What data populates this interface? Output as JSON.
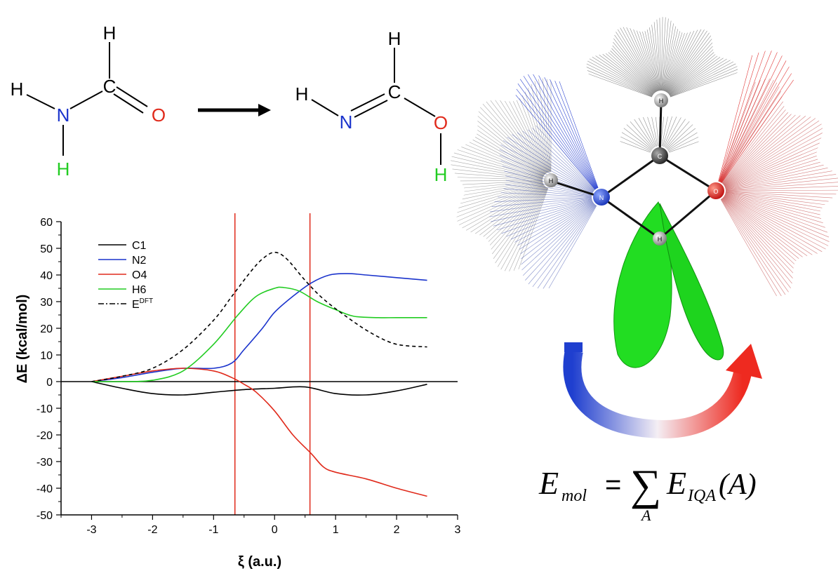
{
  "reaction": {
    "reactant": {
      "atoms": [
        {
          "id": "H_top",
          "label": "H",
          "color": "#000000"
        },
        {
          "id": "C",
          "label": "C",
          "color": "#000000"
        },
        {
          "id": "H_left",
          "label": "H",
          "color": "#000000"
        },
        {
          "id": "N",
          "label": "N",
          "color": "#1a33cc"
        },
        {
          "id": "O",
          "label": "O",
          "color": "#e02a1b"
        },
        {
          "id": "H_bottom",
          "label": "H",
          "color": "#22cc22"
        }
      ]
    },
    "product": {
      "atoms": [
        {
          "id": "H_top",
          "label": "H",
          "color": "#000000"
        },
        {
          "id": "C",
          "label": "C",
          "color": "#000000"
        },
        {
          "id": "H_left",
          "label": "H",
          "color": "#000000"
        },
        {
          "id": "N",
          "label": "N",
          "color": "#1a33cc"
        },
        {
          "id": "O",
          "label": "O",
          "color": "#e02a1b"
        },
        {
          "id": "H_bottom",
          "label": "H",
          "color": "#22cc22"
        }
      ]
    }
  },
  "chart_data": {
    "type": "line",
    "xlabel": "ξ (a.u.)",
    "ylabel": "ΔE (kcal/mol)",
    "xlim": [
      -3.5,
      3
    ],
    "ylim": [
      -50,
      60
    ],
    "xticks": [
      "-3",
      "-2",
      "-1",
      "0",
      "1",
      "2",
      "3"
    ],
    "yticks": [
      "-50",
      "-40",
      "-30",
      "-20",
      "-10",
      "0",
      "10",
      "20",
      "30",
      "40",
      "50",
      "60"
    ],
    "vlines": [
      -0.65,
      0.58
    ],
    "vline_color": "#e02a1b",
    "legend_position": "top-left",
    "series": [
      {
        "name": "C1",
        "color": "#000000",
        "dash": "solid",
        "x": [
          -3,
          -2.5,
          -2,
          -1.5,
          -1,
          -0.5,
          0,
          0.5,
          1,
          1.5,
          2,
          2.5
        ],
        "y": [
          0,
          -2.5,
          -4.5,
          -5,
          -4,
          -3,
          -2.5,
          -2,
          -4.5,
          -5,
          -3.5,
          -1
        ]
      },
      {
        "name": "N2",
        "color": "#1a33cc",
        "dash": "solid",
        "x": [
          -3,
          -2.5,
          -2,
          -1.5,
          -1,
          -0.7,
          -0.5,
          -0.2,
          0,
          0.3,
          0.6,
          0.9,
          1.2,
          1.5,
          2,
          2.5
        ],
        "y": [
          0,
          1.5,
          3.5,
          5,
          5,
          7,
          12,
          20,
          26,
          32,
          37,
          40,
          40.5,
          40,
          39,
          38
        ]
      },
      {
        "name": "O4",
        "color": "#e02a1b",
        "dash": "solid",
        "x": [
          -3,
          -2.5,
          -2,
          -1.5,
          -1,
          -0.7,
          -0.5,
          -0.3,
          0,
          0.3,
          0.6,
          0.8,
          1,
          1.5,
          2,
          2.5
        ],
        "y": [
          0,
          2,
          4,
          5,
          4,
          1.5,
          -1,
          -4,
          -11,
          -20,
          -27,
          -32,
          -34,
          -36.5,
          -40,
          -43
        ]
      },
      {
        "name": "H6",
        "color": "#22cc22",
        "dash": "solid",
        "x": [
          -3,
          -2.5,
          -2,
          -1.5,
          -1,
          -0.6,
          -0.3,
          0,
          0.15,
          0.4,
          0.7,
          1,
          1.3,
          1.7,
          2,
          2.5
        ],
        "y": [
          0,
          0,
          0.5,
          4,
          14,
          25,
          32,
          35,
          35.3,
          34,
          30,
          27,
          24.5,
          24,
          24,
          24
        ]
      },
      {
        "name": "E^DFT",
        "color": "#000000",
        "dash": "dashed",
        "x": [
          -3,
          -2.5,
          -2,
          -1.5,
          -1,
          -0.7,
          -0.4,
          -0.2,
          0,
          0.2,
          0.5,
          0.8,
          1.2,
          1.6,
          2,
          2.5
        ],
        "y": [
          0,
          2,
          5,
          12,
          23,
          32,
          41,
          46,
          48.5,
          46,
          38,
          31,
          24,
          18,
          14,
          13
        ]
      }
    ],
    "legend_labels": [
      {
        "main": "C1",
        "sup": ""
      },
      {
        "main": "N2",
        "sup": ""
      },
      {
        "main": "O4",
        "sup": ""
      },
      {
        "main": "H6",
        "sup": ""
      },
      {
        "main": "E",
        "sup": "DFT"
      }
    ]
  },
  "molecule_graphic": {
    "atoms": [
      {
        "label": "H",
        "color": "#dddddd"
      },
      {
        "label": "C",
        "color": "#555555"
      },
      {
        "label": "H",
        "color": "#dddddd"
      },
      {
        "label": "N",
        "color": "#2244cc"
      },
      {
        "label": "O",
        "color": "#dd2222"
      },
      {
        "label": "H",
        "color": "#dddddd"
      }
    ]
  },
  "equation": {
    "E": "E",
    "sub_mol": "mol",
    "equals": "=",
    "sum": "∑",
    "sum_index": "A",
    "E2": "E",
    "sub_iqa": "IQA",
    "arg": "(A)"
  }
}
